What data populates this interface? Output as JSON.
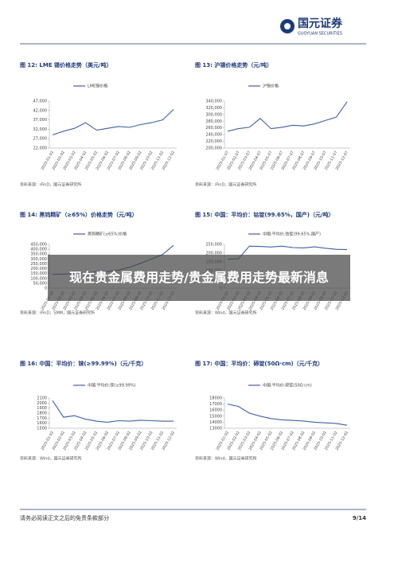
{
  "header": {
    "logo_cn": "国元证券",
    "logo_en": "GUOYUAN SECURITIES"
  },
  "overlay": {
    "title": "现在贵金属费用走势/贵金属费用走势最新消息"
  },
  "charts": [
    {
      "type": "line",
      "title": "图 12: LME 锡价格走势（美元/吨）",
      "series_name": "LME锡价格",
      "color": "#3d5fa6",
      "source": "资料来源：iFinD，国元证券研究所",
      "categories": [
        "2025-01-02",
        "2025-02-02",
        "2025-03-02",
        "2025-04-02",
        "2025-05-02",
        "2025-06-02",
        "2025-07-02",
        "2025-08-02",
        "2025-09-02",
        "2025-10-02",
        "2025-11-02",
        "2025-12-02"
      ],
      "values": [
        29000,
        31000,
        32500,
        35500,
        31500,
        32500,
        33500,
        33000,
        34500,
        35500,
        37000,
        42500
      ],
      "ylim": [
        22000,
        47000
      ],
      "yticks": [
        {
          "value": 22000,
          "label": "22,000"
        },
        {
          "value": 27000,
          "label": "27,000"
        },
        {
          "value": 32000,
          "label": "32,000"
        },
        {
          "value": 37000,
          "label": "37,000"
        },
        {
          "value": 42000,
          "label": "42,000"
        },
        {
          "value": 47000,
          "label": "47,000"
        }
      ]
    },
    {
      "type": "line",
      "title": "图 13: 沪锡价格走势（元/吨）",
      "series_name": "沪锡价格",
      "color": "#3d5fa6",
      "source": "资料来源：iFinD，国元证券研究所",
      "categories": [
        "2025-01-07",
        "2025-02-07",
        "2025-03-07",
        "2025-04-07",
        "2025-05-07",
        "2025-06-07",
        "2025-07-07",
        "2025-08-07",
        "2025-09-07",
        "2025-10-07",
        "2025-11-07",
        "2025-12-07"
      ],
      "values": [
        250000,
        258000,
        262000,
        288000,
        258000,
        262000,
        268000,
        266000,
        272000,
        282000,
        292000,
        338000
      ],
      "ylim": [
        200000,
        340000
      ],
      "yticks": [
        {
          "value": 200000,
          "label": "200,000"
        },
        {
          "value": 220000,
          "label": "220,000"
        },
        {
          "value": 240000,
          "label": "240,000"
        },
        {
          "value": 260000,
          "label": "260,000"
        },
        {
          "value": 280000,
          "label": "280,000"
        },
        {
          "value": 300000,
          "label": "300,000"
        },
        {
          "value": 320000,
          "label": "320,000"
        },
        {
          "value": 340000,
          "label": "340,000"
        }
      ]
    },
    {
      "type": "line",
      "title": "图 14: 黑钨精矿（≥65%）价格走势（元/吨）",
      "series_name": "黑钨精矿(≥65%)价格",
      "color": "#3d5fa6",
      "source": "资料来源：iFinD，SMM，国元证券研究所",
      "categories": [
        "2025-01-02",
        "2025-02-02",
        "2025-03-02",
        "2025-04-02",
        "2025-05-02",
        "2025-06-02",
        "2025-07-02",
        "2025-08-02",
        "2025-09-02",
        "2025-10-02",
        "2025-11-02",
        "2025-12-02"
      ],
      "values": [
        143000,
        145000,
        150000,
        158000,
        168000,
        172000,
        185000,
        215000,
        255000,
        300000,
        345000,
        440000
      ],
      "ylim": [
        0,
        450000
      ],
      "yticks": [
        0,
        {
          "value": 50000,
          "label": "50,000"
        },
        {
          "value": 100000,
          "label": "100,000"
        },
        {
          "value": 150000,
          "label": "150,000"
        },
        {
          "value": 200000,
          "label": "200,000"
        },
        {
          "value": 250000,
          "label": "250,000"
        },
        {
          "value": 300000,
          "label": "300,000"
        },
        {
          "value": 350000,
          "label": "350,000"
        },
        {
          "value": 400000,
          "label": "400,000"
        },
        {
          "value": 450000,
          "label": "450,000"
        }
      ]
    },
    {
      "type": "line",
      "title": "图 15: 中国：平均价：钴锭(99.65%，国产)（元/吨）",
      "series_name": "中国:平均价:钴锭(99.65%,国产)",
      "color": "#3d5fa6",
      "source": "资料来源：Wind，国元证券研究所",
      "categories": [
        "2025-01-02",
        "2025-02-02",
        "2025-03-02",
        "2025-04-02",
        "2025-05-02",
        "2025-06-02",
        "2025-07-02",
        "2025-08-02",
        "2025-09-02",
        "2025-10-02",
        "2025-11-02",
        "2025-12-02"
      ],
      "values": [
        165000,
        168000,
        240000,
        238000,
        235000,
        240000,
        232000,
        230000,
        236000,
        228000,
        222000,
        220000
      ],
      "ylim": [
        0,
        250000
      ],
      "yticks": [
        0,
        {
          "value": 50000,
          "label": "50,000"
        },
        {
          "value": 100000,
          "label": "100,000"
        },
        {
          "value": 150000,
          "label": "150,000"
        },
        {
          "value": 200000,
          "label": "200,000"
        },
        {
          "value": 250000,
          "label": "250,000"
        }
      ]
    },
    {
      "type": "line",
      "title": "图 16: 中国：平均价：铼(≥99.99%)（元/千克）",
      "series_name": "中国:平均价:铼(≥99.99%)",
      "color": "#3d5fa6",
      "source": "资料来源：Wind，国元证券研究所",
      "categories": [
        "2025-01-02",
        "2025-02-02",
        "2025-03-02",
        "2025-04-02",
        "2025-05-02",
        "2025-06-02",
        "2025-07-02",
        "2025-08-02",
        "2025-09-02",
        "2025-10-02",
        "2025-11-02",
        "2025-12-02"
      ],
      "values": [
        2050,
        1720,
        1750,
        1680,
        1640,
        1620,
        1650,
        1640,
        1660,
        1650,
        1640,
        1640
      ],
      "ylim": [
        1500,
        2100
      ],
      "yticks": [
        1500,
        1600,
        1700,
        1800,
        1900,
        2000,
        2100
      ]
    },
    {
      "type": "line",
      "title": "图 17: 中国：平均价：碲锭(50Ω·cm)（元/千克）",
      "series_name": "中国:平均价:碲锭(50Ω·cm)",
      "color": "#3d5fa6",
      "source": "资料来源：Wind，国元证券研究所",
      "categories": [
        "2025-01-02",
        "2025-02-02",
        "2025-03-02",
        "2025-04-02",
        "2025-05-02",
        "2025-06-02",
        "2025-07-02",
        "2025-08-02",
        "2025-09-02",
        "2025-10-02",
        "2025-11-02",
        "2025-12-02"
      ],
      "values": [
        17000,
        16600,
        15500,
        15000,
        14600,
        14400,
        14300,
        14200,
        14000,
        13900,
        13800,
        13500
      ],
      "ylim": [
        13000,
        18000
      ],
      "yticks": [
        13000,
        14000,
        15000,
        16000,
        17000,
        18000
      ]
    }
  ],
  "footer": {
    "disclaimer": "请务必阅读正文之后的免责条款部分",
    "page": "9/14"
  }
}
